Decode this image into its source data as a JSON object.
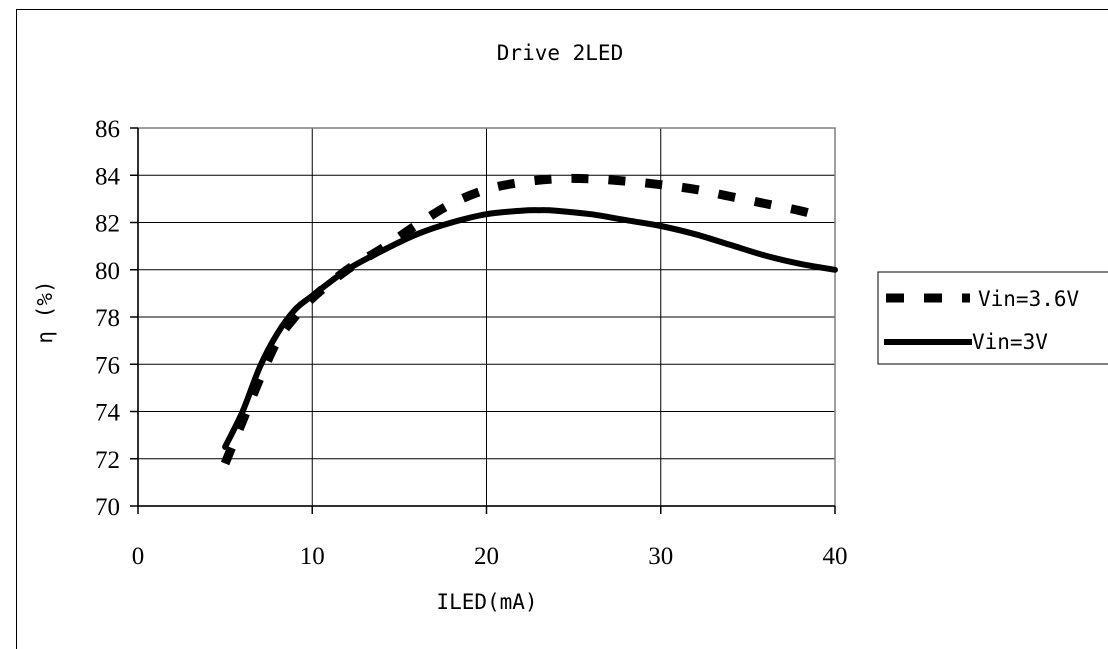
{
  "chart_data": {
    "type": "line",
    "title": "Drive 2LED",
    "xlabel": "ILED(mA)",
    "ylabel": "η (%)",
    "xlim": [
      0,
      40
    ],
    "ylim": [
      70,
      86
    ],
    "x_ticks": [
      0,
      10,
      20,
      30,
      40
    ],
    "y_ticks": [
      70,
      72,
      74,
      76,
      78,
      80,
      82,
      84,
      86
    ],
    "grid": true,
    "legend_position": "right",
    "series": [
      {
        "name": "Vin=3.6V",
        "style": "dashed",
        "color": "#000000",
        "x": [
          5,
          6,
          7,
          8,
          9,
          10,
          12,
          14,
          16,
          18,
          20,
          22,
          24,
          26,
          28,
          30,
          32,
          34,
          36,
          38,
          39
        ],
        "y": [
          71.8,
          73.6,
          75.4,
          77.0,
          78.0,
          78.8,
          80.0,
          80.9,
          81.9,
          82.8,
          83.4,
          83.7,
          83.85,
          83.85,
          83.75,
          83.6,
          83.4,
          83.1,
          82.8,
          82.5,
          82.3
        ]
      },
      {
        "name": "Vin=3V",
        "style": "solid",
        "color": "#000000",
        "x": [
          5,
          6,
          7,
          8,
          9,
          10,
          12,
          14,
          16,
          18,
          20,
          22,
          23,
          24,
          26,
          28,
          30,
          32,
          34,
          36,
          38,
          40
        ],
        "y": [
          72.5,
          74.0,
          75.9,
          77.3,
          78.3,
          78.9,
          80.0,
          80.8,
          81.5,
          82.0,
          82.35,
          82.5,
          82.52,
          82.5,
          82.35,
          82.1,
          81.85,
          81.5,
          81.05,
          80.6,
          80.25,
          80.0
        ]
      }
    ]
  }
}
